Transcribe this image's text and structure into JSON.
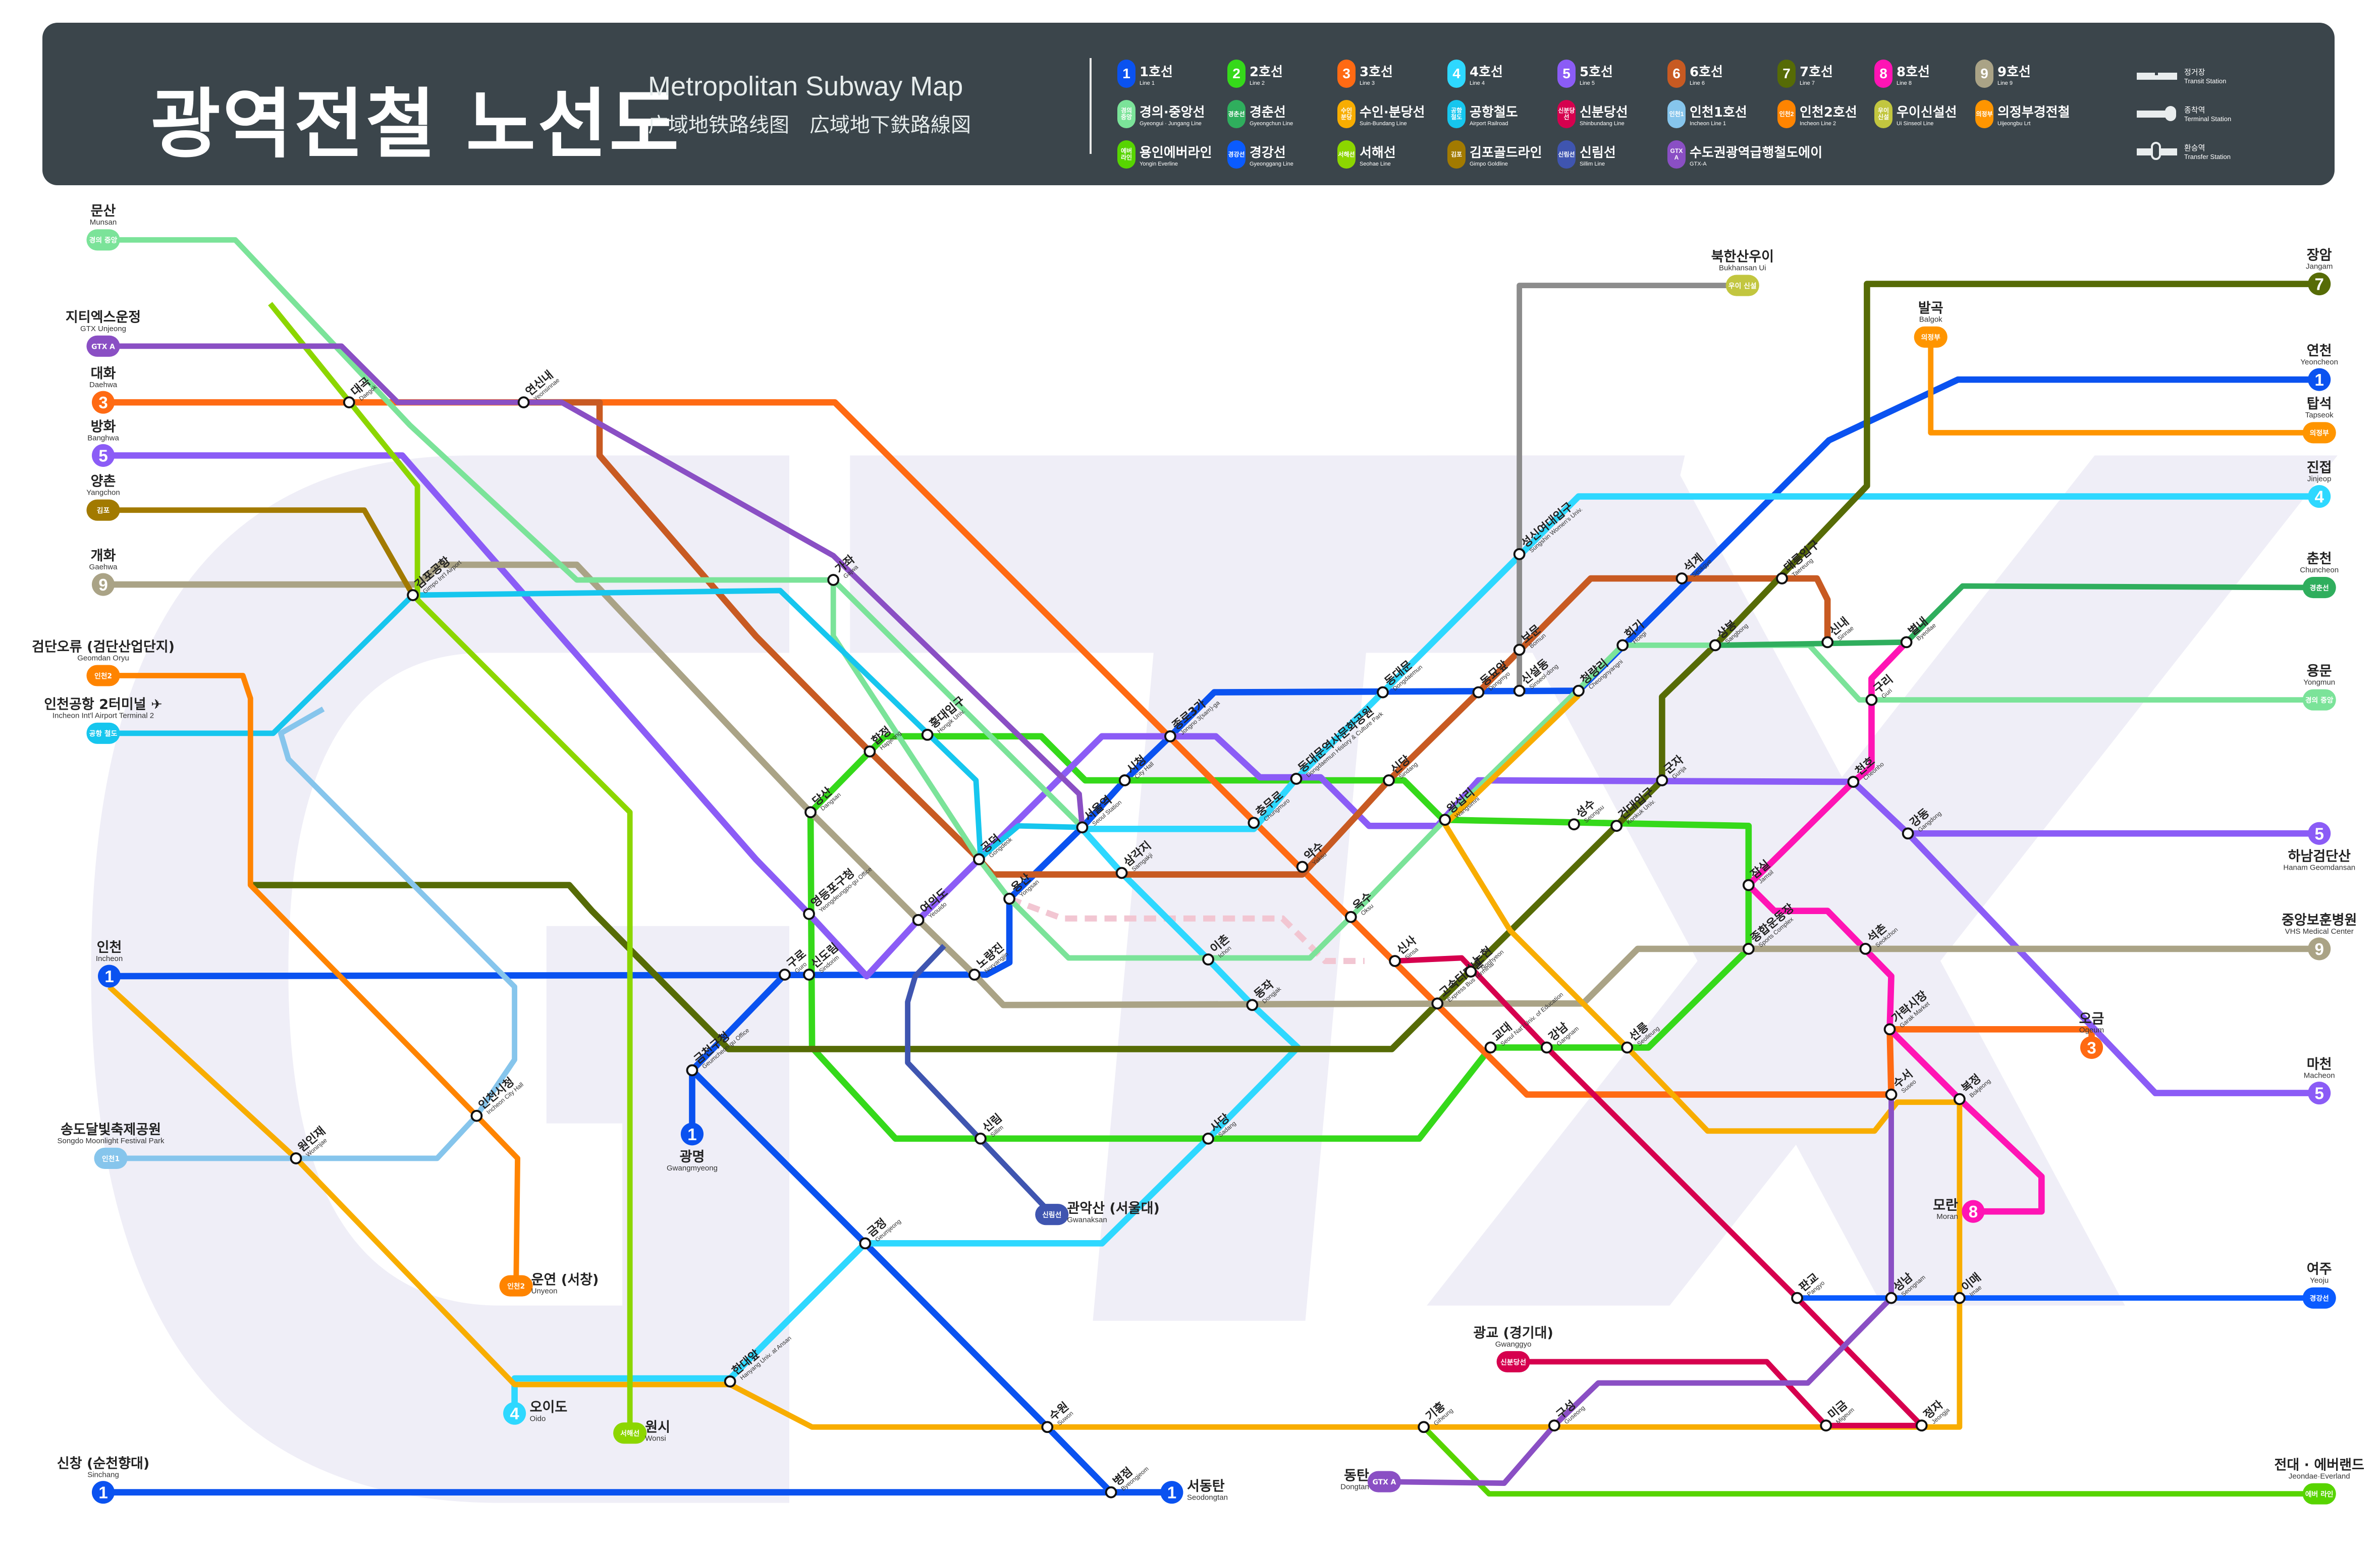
{
  "header": {
    "title": "광역전철 노선도",
    "subtitle_en": "Metropolitan Subway Map",
    "subtitle_zh": "广域地铁路线图",
    "subtitle_ja": "広域地下鉄路線図"
  },
  "legend": {
    "lines": [
      {
        "badge": "1",
        "ko": "1호선",
        "en": "Line 1",
        "color": "#0a52f0"
      },
      {
        "badge": "2",
        "ko": "2호선",
        "en": "Line 2",
        "color": "#35d91a"
      },
      {
        "badge": "3",
        "ko": "3호선",
        "en": "Line 3",
        "color": "#ff6a13"
      },
      {
        "badge": "4",
        "ko": "4호선",
        "en": "Line 4",
        "color": "#2ed8ff"
      },
      {
        "badge": "5",
        "ko": "5호선",
        "en": "Line 5",
        "color": "#8b5cf6"
      },
      {
        "badge": "6",
        "ko": "6호선",
        "en": "Line 6",
        "color": "#c85a22"
      },
      {
        "badge": "7",
        "ko": "7호선",
        "en": "Line 7",
        "color": "#566b06"
      },
      {
        "badge": "8",
        "ko": "8호선",
        "en": "Line 8",
        "color": "#ff14b4"
      },
      {
        "badge": "9",
        "ko": "9호선",
        "en": "Line 9",
        "color": "#aaa386"
      },
      {
        "badge": "경의 중앙",
        "ko": "경의·중앙선",
        "en": "Gyeongui · Jungang Line",
        "color": "#7be399"
      },
      {
        "badge": "경춘선",
        "ko": "경춘선",
        "en": "Gyeongchun Line",
        "color": "#2fae5d"
      },
      {
        "badge": "수인 분당",
        "ko": "수인·분당선",
        "en": "Suin-Bundang Line",
        "color": "#f8ad00"
      },
      {
        "badge": "공항 철도",
        "ko": "공항철도",
        "en": "Airport Railroad",
        "color": "#16c6ee"
      },
      {
        "badge": "신분당선",
        "ko": "신분당선",
        "en": "Shinbundang Line",
        "color": "#d6004e"
      },
      {
        "badge": "인천1",
        "ko": "인천1호선",
        "en": "Incheon Line 1",
        "color": "#86c5ec"
      },
      {
        "badge": "인천2",
        "ko": "인천2호선",
        "en": "Incheon Line 2",
        "color": "#ff8400"
      },
      {
        "badge": "우이 신설",
        "ko": "우이신설선",
        "en": "Ui Sinseol Line",
        "color": "#c2c63f"
      },
      {
        "badge": "의정부",
        "ko": "의정부경전철",
        "en": "Uijeongbu Lrt",
        "color": "#ff9500"
      },
      {
        "badge": "에버 라인",
        "ko": "용인에버라인",
        "en": "Yongin Everline",
        "color": "#57d400"
      },
      {
        "badge": "경강선",
        "ko": "경강선",
        "en": "Gyeonggang Line",
        "color": "#0a5bff"
      },
      {
        "badge": "서해선",
        "ko": "서해선",
        "en": "Seohae Line",
        "color": "#8cd600"
      },
      {
        "badge": "김포",
        "ko": "김포골드라인",
        "en": "Gimpo Goldline",
        "color": "#a27a00"
      },
      {
        "badge": "신림선",
        "ko": "신림선",
        "en": "Sillim Line",
        "color": "#3f55b0"
      },
      {
        "badge": "GTX A",
        "ko": "수도권광역급행철도에이",
        "en": "GTX-A",
        "color": "#8a4fc4"
      }
    ],
    "station_types": [
      {
        "ko": "정거장",
        "en": "Transit Station"
      },
      {
        "ko": "종착역",
        "en": "Terminal Station"
      },
      {
        "ko": "환승역",
        "en": "Transfer Station"
      }
    ]
  },
  "map": {
    "track_colors": {
      "ui_sinseol": "#8c8c8c",
      "shinbundang_planned": "#f2c6d2",
      "gtx_label": "GTX-A"
    },
    "watermark": "GTX",
    "terminals": [
      {
        "ko": "문산",
        "en": "Munsan",
        "badge": "경의 중앙",
        "line": 9
      },
      {
        "ko": "지티엑스운정",
        "en": "GTX Unjeong",
        "badge": "GTX A",
        "line": 23
      },
      {
        "ko": "대화",
        "en": "Daehwa",
        "badge": "3",
        "line": 2
      },
      {
        "ko": "방화",
        "en": "Banghwa",
        "badge": "5",
        "line": 4
      },
      {
        "ko": "양촌",
        "en": "Yangchon",
        "badge": "김포",
        "line": 21
      },
      {
        "ko": "개화",
        "en": "Gaehwa",
        "badge": "9",
        "line": 8
      },
      {
        "ko": "검단오류 (검단산업단지)",
        "en": "Geomdan Oryu",
        "badge": "인천2",
        "line": 15
      },
      {
        "ko": "인천공항 2터미널 ✈",
        "en": "Incheon Int'l Airport Terminal 2",
        "badge": "공항 철도",
        "line": 12
      },
      {
        "ko": "인천",
        "en": "Incheon",
        "badge": "1",
        "line": 0
      },
      {
        "ko": "송도달빛축제공원",
        "en": "Songdo Moonlight Festival Park",
        "badge": "인천1",
        "line": 14
      },
      {
        "ko": "신창 (순천향대)",
        "en": "Sinchang",
        "badge": "1",
        "line": 0
      },
      {
        "ko": "서동탄",
        "en": "Seodongtan",
        "badge": "1",
        "line": 0
      },
      {
        "ko": "광명",
        "en": "Gwangmyeong",
        "badge": "1",
        "line": 0
      },
      {
        "ko": "원시",
        "en": "Wonsi",
        "badge": "서해선",
        "line": 20
      },
      {
        "ko": "오이도",
        "en": "Oido",
        "badge": "4",
        "line": 3
      },
      {
        "ko": "운연 (서창)",
        "en": "Unyeon",
        "badge": "인천2",
        "line": 15
      },
      {
        "ko": "관악산 (서울대)",
        "en": "Gwanaksan",
        "badge": "신림선",
        "line": 22
      },
      {
        "ko": "동탄",
        "en": "Dongtan",
        "badge": "GTX A",
        "line": 23
      },
      {
        "ko": "광교 (경기대)",
        "en": "Gwanggyo",
        "badge": "신분당선",
        "line": 13
      },
      {
        "ko": "전대 · 에버랜드",
        "en": "Jeondae·Everland",
        "badge": "에버 라인",
        "line": 18
      },
      {
        "ko": "여주",
        "en": "Yeoju",
        "badge": "경강선",
        "line": 19
      },
      {
        "ko": "마천",
        "en": "Macheon",
        "badge": "5",
        "line": 4
      },
      {
        "ko": "오금",
        "en": "Ogeum",
        "badge": "3",
        "line": 2
      },
      {
        "ko": "중앙보훈병원",
        "en": "VHS Medical Center",
        "badge": "9",
        "line": 8
      },
      {
        "ko": "하남검단산",
        "en": "Hanam Geomdansan",
        "badge": "5",
        "line": 4
      },
      {
        "ko": "용문",
        "en": "Yongmun",
        "badge": "경의 중앙",
        "line": 9
      },
      {
        "ko": "춘천",
        "en": "Chuncheon",
        "badge": "경춘선",
        "line": 10
      },
      {
        "ko": "진접",
        "en": "Jinjeop",
        "badge": "4",
        "line": 3
      },
      {
        "ko": "탑석",
        "en": "Tapseok",
        "badge": "의정부",
        "line": 17
      },
      {
        "ko": "연천",
        "en": "Yeoncheon",
        "badge": "1",
        "line": 0
      },
      {
        "ko": "장암",
        "en": "Jangam",
        "badge": "7",
        "line": 6
      },
      {
        "ko": "발곡",
        "en": "Balgok",
        "badge": "의정부",
        "line": 17
      },
      {
        "ko": "북한산우이",
        "en": "Bukhansan Ui",
        "badge": "우이 신설",
        "line": 16
      },
      {
        "ko": "모란",
        "en": "Moran",
        "badge": "8",
        "line": 7
      }
    ],
    "stations": [
      {
        "ko": "서울역",
        "en": "Seoul Station"
      },
      {
        "ko": "시청",
        "en": "City Hall"
      },
      {
        "ko": "종로3가",
        "en": "Jongno 3(sam)-ga"
      },
      {
        "ko": "동대문",
        "en": "Dongdaemun"
      },
      {
        "ko": "동대문역사문화공원",
        "en": "Dongdaemun History & Culture Park"
      },
      {
        "ko": "충무로",
        "en": "Chungmuro"
      },
      {
        "ko": "왕십리",
        "en": "Wangsimni"
      },
      {
        "ko": "청량리",
        "en": "Cheongnyangni"
      },
      {
        "ko": "회기",
        "en": "Hoegi"
      },
      {
        "ko": "상봉",
        "en": "Sangbong"
      },
      {
        "ko": "석계",
        "en": "Seokgye"
      },
      {
        "ko": "태릉입구",
        "en": "Taereung"
      },
      {
        "ko": "신내",
        "en": "Sinnae"
      },
      {
        "ko": "건대입구",
        "en": "Konkuk Univ."
      },
      {
        "ko": "성수",
        "en": "Seongsu"
      },
      {
        "ko": "군자",
        "en": "Gunja"
      },
      {
        "ko": "천호",
        "en": "Cheonho"
      },
      {
        "ko": "강동",
        "en": "Gangdong"
      },
      {
        "ko": "잠실",
        "en": "Jamsil"
      },
      {
        "ko": "종합운동장",
        "en": "Sports Complex"
      },
      {
        "ko": "석촌",
        "en": "Seokchon"
      },
      {
        "ko": "가락시장",
        "en": "Garak Market"
      },
      {
        "ko": "수서",
        "en": "Suseo"
      },
      {
        "ko": "복정",
        "en": "Bokjeong"
      },
      {
        "ko": "선릉",
        "en": "Seolleung"
      },
      {
        "ko": "강남",
        "en": "Gangnam"
      },
      {
        "ko": "교대",
        "en": "Seoul Nat'l Univ. of Education"
      },
      {
        "ko": "고속터미널",
        "en": "Express Bus Terminal"
      },
      {
        "ko": "논현",
        "en": "Nonhyeon"
      },
      {
        "ko": "신사",
        "en": "Sinsa"
      },
      {
        "ko": "옥수",
        "en": "Oksu"
      },
      {
        "ko": "약수",
        "en": "Yaksu"
      },
      {
        "ko": "삼각지",
        "en": "Samgakji"
      },
      {
        "ko": "이촌",
        "en": "Ichon"
      },
      {
        "ko": "동작",
        "en": "Dongjak"
      },
      {
        "ko": "사당",
        "en": "Sadang"
      },
      {
        "ko": "신림",
        "en": "Sillim"
      },
      {
        "ko": "용산",
        "en": "Yongsan"
      },
      {
        "ko": "공덕",
        "en": "Gongdeok"
      },
      {
        "ko": "여의도",
        "en": "Yeouido"
      },
      {
        "ko": "노량진",
        "en": "Noryangjin"
      },
      {
        "ko": "신도림",
        "en": "Sindorim"
      },
      {
        "ko": "구로",
        "en": "Guro"
      },
      {
        "ko": "영등포구청",
        "en": "Yeongdeungpo-gu Office"
      },
      {
        "ko": "당산",
        "en": "Dangsan"
      },
      {
        "ko": "합정",
        "en": "Hapjeong"
      },
      {
        "ko": "홍대입구",
        "en": "Hongik Univ."
      },
      {
        "ko": "가좌",
        "en": "Gajwa"
      },
      {
        "ko": "금정",
        "en": "Geumjeong"
      },
      {
        "ko": "수원",
        "en": "Suwon"
      },
      {
        "ko": "병점",
        "en": "Byeongjeom"
      },
      {
        "ko": "판교",
        "en": "Pangyo"
      },
      {
        "ko": "정자",
        "en": "Jeongja"
      },
      {
        "ko": "미금",
        "en": "Migeum"
      },
      {
        "ko": "성남",
        "en": "Seongnam"
      },
      {
        "ko": "이매",
        "en": "Imae"
      },
      {
        "ko": "기흥",
        "en": "Giheung"
      },
      {
        "ko": "구성",
        "en": "Guseong"
      },
      {
        "ko": "인천시청",
        "en": "Incheon City Hall"
      },
      {
        "ko": "원인재",
        "en": "Woninjae"
      },
      {
        "ko": "금천구청",
        "en": "Geumcheon-gu Office"
      },
      {
        "ko": "보문",
        "en": "Bomun"
      },
      {
        "ko": "신설동",
        "en": "Sinseol-dong"
      },
      {
        "ko": "성신여대입구",
        "en": "Sungshin Women's Univ."
      },
      {
        "ko": "동묘앞",
        "en": "Dongmyo"
      },
      {
        "ko": "신당",
        "en": "Sindang"
      },
      {
        "ko": "한대앞",
        "en": "Hanyang Univ. at Ansan"
      },
      {
        "ko": "김포공항",
        "en": "Gimpo Int'l Airport"
      },
      {
        "ko": "연신내",
        "en": "Yeonsinnae"
      },
      {
        "ko": "대곡",
        "en": "Daegok"
      },
      {
        "ko": "별내",
        "en": "Byeollae"
      },
      {
        "ko": "구리",
        "en": "Guri"
      }
    ]
  }
}
